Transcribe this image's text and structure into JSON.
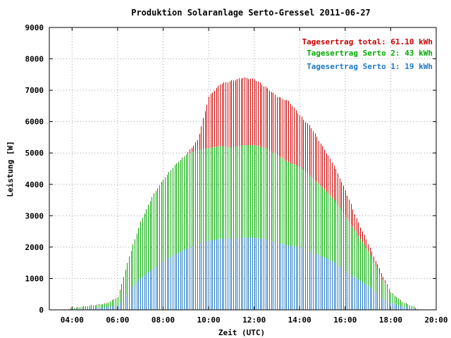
{
  "chart_data": {
    "type": "bar",
    "stacked": true,
    "title": "Produktion Solaranlage Serto-Gressel 2011-06-27",
    "xlabel": "Zeit (UTC)",
    "ylabel": "Leistung [W]",
    "x_range_hours": [
      3,
      20
    ],
    "ylim": [
      0,
      9000
    ],
    "x_ticks": [
      "04:00",
      "06:00",
      "08:00",
      "10:00",
      "12:00",
      "14:00",
      "16:00",
      "18:00",
      "20:00"
    ],
    "y_ticks": [
      "0",
      "1000",
      "2000",
      "3000",
      "4000",
      "5000",
      "6000",
      "7000",
      "8000",
      "9000"
    ],
    "grid": true,
    "legend_position": "top-right",
    "legend": [
      {
        "label": "Tagesertrag total: 61.10 kWh",
        "color": "#cc0000"
      },
      {
        "label": "Tagesertrag Serto 2: 43 kWh",
        "color": "#00aa00"
      },
      {
        "label": "Tagesertrag Serto 1: 19 kWh",
        "color": "#1f77c4"
      }
    ],
    "series": [
      {
        "name": "Serto 1",
        "color": "#1f77c4",
        "keypoints": [
          [
            3.75,
            0
          ],
          [
            4.0,
            20
          ],
          [
            4.5,
            40
          ],
          [
            5.0,
            60
          ],
          [
            5.5,
            80
          ],
          [
            6.0,
            150
          ],
          [
            6.5,
            600
          ],
          [
            7.0,
            1000
          ],
          [
            7.5,
            1300
          ],
          [
            8.0,
            1550
          ],
          [
            8.5,
            1750
          ],
          [
            9.0,
            1950
          ],
          [
            9.5,
            2100
          ],
          [
            10.0,
            2200
          ],
          [
            10.5,
            2260
          ],
          [
            11.0,
            2280
          ],
          [
            11.5,
            2300
          ],
          [
            12.0,
            2300
          ],
          [
            12.5,
            2250
          ],
          [
            13.0,
            2150
          ],
          [
            13.5,
            2050
          ],
          [
            14.0,
            2000
          ],
          [
            14.5,
            1850
          ],
          [
            15.0,
            1700
          ],
          [
            15.5,
            1500
          ],
          [
            16.0,
            1250
          ],
          [
            16.5,
            1000
          ],
          [
            17.0,
            750
          ],
          [
            17.5,
            450
          ],
          [
            18.0,
            220
          ],
          [
            18.5,
            100
          ],
          [
            19.0,
            30
          ],
          [
            19.25,
            0
          ]
        ]
      },
      {
        "name": "Serto 2",
        "color": "#00aa00",
        "keypoints": [
          [
            3.75,
            0
          ],
          [
            4.0,
            30
          ],
          [
            4.5,
            60
          ],
          [
            5.0,
            90
          ],
          [
            5.5,
            120
          ],
          [
            6.0,
            250
          ],
          [
            6.5,
            1100
          ],
          [
            7.0,
            1800
          ],
          [
            7.5,
            2300
          ],
          [
            8.0,
            2600
          ],
          [
            8.5,
            2850
          ],
          [
            9.0,
            3000
          ],
          [
            9.5,
            3000
          ],
          [
            10.0,
            2950
          ],
          [
            10.5,
            2960
          ],
          [
            11.0,
            2900
          ],
          [
            11.5,
            2950
          ],
          [
            12.0,
            2950
          ],
          [
            12.5,
            2900
          ],
          [
            13.0,
            2800
          ],
          [
            13.5,
            2650
          ],
          [
            14.0,
            2550
          ],
          [
            14.5,
            2400
          ],
          [
            15.0,
            2200
          ],
          [
            15.5,
            2000
          ],
          [
            16.0,
            1750
          ],
          [
            16.5,
            1450
          ],
          [
            17.0,
            1100
          ],
          [
            17.5,
            700
          ],
          [
            18.0,
            330
          ],
          [
            18.5,
            150
          ],
          [
            19.0,
            60
          ],
          [
            19.25,
            0
          ]
        ]
      }
    ],
    "total_keypoints": [
      [
        3.75,
        0
      ],
      [
        4.0,
        50
      ],
      [
        4.5,
        100
      ],
      [
        5.0,
        150
      ],
      [
        5.5,
        200
      ],
      [
        6.0,
        400
      ],
      [
        6.5,
        1700
      ],
      [
        7.0,
        2800
      ],
      [
        7.5,
        3600
      ],
      [
        8.0,
        4150
      ],
      [
        8.5,
        4600
      ],
      [
        9.0,
        4950
      ],
      [
        9.5,
        5400
      ],
      [
        10.0,
        6800
      ],
      [
        10.5,
        7200
      ],
      [
        11.0,
        7300
      ],
      [
        11.5,
        7400
      ],
      [
        12.0,
        7350
      ],
      [
        12.5,
        7100
      ],
      [
        13.0,
        6800
      ],
      [
        13.5,
        6650
      ],
      [
        14.0,
        6200
      ],
      [
        14.5,
        5800
      ],
      [
        15.0,
        5200
      ],
      [
        15.5,
        4600
      ],
      [
        16.0,
        3800
      ],
      [
        16.5,
        2900
      ],
      [
        17.0,
        2100
      ],
      [
        17.5,
        1300
      ],
      [
        18.0,
        550
      ],
      [
        18.5,
        250
      ],
      [
        19.0,
        90
      ],
      [
        19.25,
        0
      ]
    ],
    "bar_interval_hours": 0.0833
  }
}
